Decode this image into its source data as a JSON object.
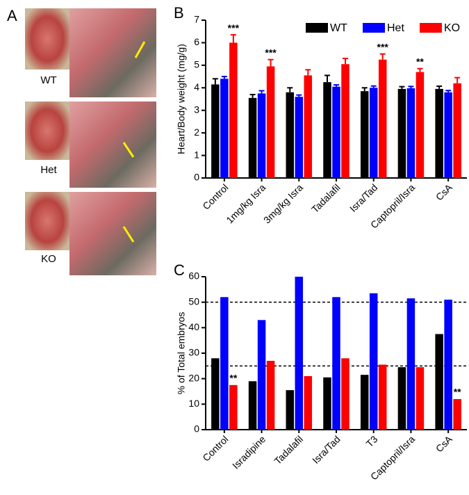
{
  "panel_a": {
    "label": "A",
    "captions": [
      "WT",
      "Het",
      "KO"
    ]
  },
  "chart_data": [
    {
      "type": "bar",
      "panel_label": "B",
      "y_label": "Heart/Body weight (mg/g)",
      "categories": [
        "Control",
        "1mg/kg Isra",
        "3mg/kg Isra",
        "Tadalafil",
        "Isra/Tad",
        "Captopril/Isra",
        "CsA"
      ],
      "series": [
        {
          "name": "WT",
          "color": "#000000",
          "values": [
            4.15,
            3.55,
            3.8,
            4.25,
            3.85,
            3.95,
            3.95
          ],
          "errors": [
            0.25,
            0.15,
            0.2,
            0.3,
            0.15,
            0.1,
            0.12
          ]
        },
        {
          "name": "Het",
          "color": "#0000ff",
          "values": [
            4.4,
            3.75,
            3.6,
            4.05,
            4.0,
            3.98,
            3.8
          ],
          "errors": [
            0.1,
            0.12,
            0.08,
            0.08,
            0.08,
            0.08,
            0.08
          ]
        },
        {
          "name": "KO",
          "color": "#ff0000",
          "values": [
            6.0,
            4.95,
            4.55,
            5.05,
            5.25,
            4.7,
            4.2
          ],
          "errors": [
            0.35,
            0.3,
            0.25,
            0.25,
            0.25,
            0.15,
            0.25
          ],
          "annotations": [
            "***",
            "***",
            null,
            null,
            "***",
            "**",
            null
          ]
        }
      ],
      "ylim": [
        0,
        7
      ],
      "yticks": [
        0,
        1,
        2,
        3,
        4,
        5,
        6,
        7
      ],
      "legend": "top-right"
    },
    {
      "type": "bar",
      "panel_label": "C",
      "y_label": "% of Total embryos",
      "categories": [
        "Control",
        "Isradipine",
        "Tadalafil",
        "Isra/Tad",
        "T3",
        "Captopril/Isra",
        "CsA"
      ],
      "series": [
        {
          "name": "WT",
          "color": "#000000",
          "values": [
            28,
            19,
            15.5,
            20.5,
            21.5,
            24.5,
            37.5
          ]
        },
        {
          "name": "Het",
          "color": "#0000ff",
          "values": [
            52,
            43,
            60,
            52,
            53.5,
            51.5,
            51
          ]
        },
        {
          "name": "KO",
          "color": "#ff0000",
          "values": [
            17.5,
            27,
            21,
            28,
            25.5,
            24.5,
            12
          ],
          "annotations": [
            "**",
            null,
            null,
            null,
            null,
            null,
            "**"
          ]
        }
      ],
      "ylim": [
        0,
        60
      ],
      "yticks": [
        0,
        10,
        20,
        30,
        40,
        50,
        60
      ],
      "hlines": [
        50,
        25
      ]
    }
  ]
}
